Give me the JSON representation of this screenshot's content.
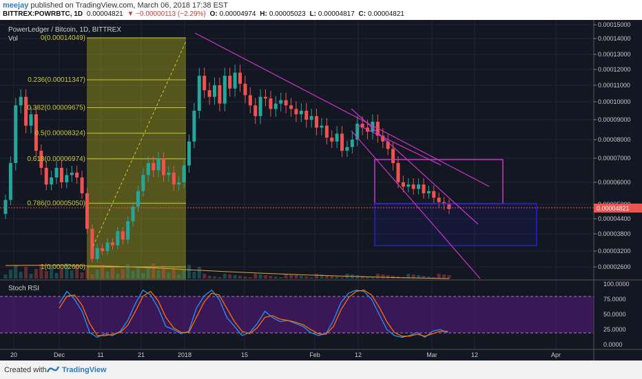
{
  "header": {
    "author": "meejay",
    "published_text": "published on TradingView.com, March 06, 2018 17:38 EST",
    "symbol": "BITTREX:POWRBTC, 1D",
    "last": "0.00004821",
    "change": "▼ −0.00000113 (−2.29%)",
    "open_label": "O:",
    "open": "0.00004974",
    "high_label": "H:",
    "high": "0.00005023",
    "low_label": "L:",
    "low": "0.00004817",
    "close_label": "C:",
    "close": "0.00004821"
  },
  "chart_data": [
    {
      "type": "candlestick",
      "title": "PowerLedger / Bitcoin, 1D, BITTREX",
      "indicator_label": "Vol",
      "ylim": [
        2.2e-05,
        0.000152
      ],
      "y_ticks": [
        "0.00015000",
        "0.00014000",
        "0.00013000",
        "0.00012000",
        "0.00011000",
        "0.00010000",
        "0.00009000",
        "0.00008000",
        "0.00007000",
        "0.00006000",
        "0.00005000",
        "0.00004400",
        "0.00003800",
        "0.00003200",
        "0.00002600"
      ],
      "last_price_label": "0.00004821",
      "x_ticks": [
        "20",
        "Dec",
        "11",
        "21",
        "2018",
        "15",
        "Feb",
        "12",
        "Mar",
        "12",
        "Apr"
      ],
      "fib_levels": [
        {
          "label": "0(0.00014049)",
          "value": 0.00014049
        },
        {
          "label": "0.236(0.00011347)",
          "value": 0.00011347
        },
        {
          "label": "0.382(0.00009675)",
          "value": 9.675e-05
        },
        {
          "label": "0.5(0.00008324)",
          "value": 8.324e-05
        },
        {
          "label": "0.618(0.00006974)",
          "value": 6.974e-05
        },
        {
          "label": "0.786(0.00005050)",
          "value": 5.05e-05
        },
        {
          "label": "1(0.00002600)",
          "value": 2.6e-05
        }
      ],
      "grid": true,
      "colors": {
        "up": "#26a69a",
        "down": "#ef5350",
        "background": "#131722",
        "fib": "#c8c832",
        "trend": "#cc33cc",
        "box_upper": "#cc33cc",
        "box_lower": "#2222cc",
        "price_line": "#ef5350"
      }
    },
    {
      "type": "line",
      "title": "Stoch RSI",
      "ylim": [
        0,
        100
      ],
      "y_ticks": [
        "100.0000",
        "75.0000",
        "50.0000",
        "25.0000",
        "0.0000"
      ],
      "band": [
        20,
        80
      ],
      "series": [
        {
          "color": "#2196f3",
          "values": [
            68,
            88,
            75,
            55,
            20,
            12,
            18,
            15,
            22,
            40,
            68,
            90,
            82,
            60,
            30,
            25,
            18,
            22,
            60,
            80,
            90,
            75,
            45,
            30,
            15,
            20,
            35,
            55,
            45,
            38,
            40,
            35,
            30,
            20,
            15,
            18,
            40,
            70,
            85,
            90,
            88,
            75,
            50,
            25,
            15,
            12,
            15,
            20,
            12,
            22,
            25,
            20
          ]
        },
        {
          "color": "#ff6d00",
          "values": [
            60,
            80,
            82,
            65,
            35,
            15,
            15,
            17,
            20,
            32,
            55,
            80,
            88,
            72,
            45,
            28,
            20,
            20,
            45,
            70,
            85,
            82,
            60,
            38,
            22,
            18,
            28,
            45,
            48,
            42,
            40,
            37,
            33,
            25,
            18,
            17,
            30,
            58,
            78,
            88,
            90,
            82,
            62,
            38,
            20,
            14,
            14,
            17,
            14,
            18,
            22,
            22
          ]
        }
      ]
    }
  ],
  "footer": {
    "created_with": "Created with",
    "brand": "TradingView"
  }
}
